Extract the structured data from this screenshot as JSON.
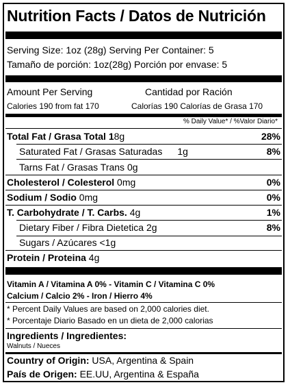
{
  "title": "Nutrition Facts / Datos de Nutrición",
  "serving": {
    "size_en": "Serving Size: 1oz (28g) Serving Per Container: 5",
    "size_es": "Tamaño de porción: 1oz(28g) Porción por envase: 5"
  },
  "amount": {
    "header_en": "Amount Per Serving",
    "header_es": "Cantidad por Ración",
    "calories_en": "Calories 190  from fat 170",
    "calories_es": "Calorías 190 Calorías de Grasa 170",
    "dv_header": "% Daily Value* / %Valor Diario*"
  },
  "nutrients": {
    "total_fat": {
      "label": "Total Fat / Grasa Total 1",
      "value": "8g",
      "dv": "28%"
    },
    "sat_fat": {
      "label": "Saturated Fat / Grasas Saturadas",
      "value": "1g",
      "dv": "8%"
    },
    "trans_fat": {
      "label": "Tarns Fat / Grasas Trans 0g"
    },
    "cholesterol": {
      "label": "Cholesterol / Colesterol",
      "value": " 0mg",
      "dv": "0%"
    },
    "sodium": {
      "label": "Sodium / Sodio",
      "value": " 0mg",
      "dv": "0%"
    },
    "carbs": {
      "label": "T. Carbohydrate / T. Carbs.",
      "value": " 4g",
      "dv": "1%"
    },
    "fiber": {
      "label": "Dietary Fiber / Fibra Dietetica 2g",
      "dv": "8%"
    },
    "sugars": {
      "label": "Sugars / Azúcares <1g"
    },
    "protein": {
      "label": "Protein / Proteina",
      "value": " 4g"
    }
  },
  "vitamins": {
    "line1": "Vitamin A / Vitamina A 0%  - Vitamin C / Vitamina C 0%",
    "line2": "Calcium / Calcio 2%  -  Iron / Hierro 4%"
  },
  "footnotes": {
    "en": "* Percent Daily Values are based on 2,000 calories diet.",
    "es": "* Porcentaje Diario Basado en un dieta de 2,000 calorias"
  },
  "ingredients": {
    "heading": "Ingredients / Ingredientes:",
    "list": "Walnuts / Nueces"
  },
  "origin": {
    "en_label": "Country of Origin:",
    "en_value": " USA, Argentina & Spain",
    "es_label": "País de Origen:",
    "es_value": " EE.UU, Argentina & España"
  }
}
